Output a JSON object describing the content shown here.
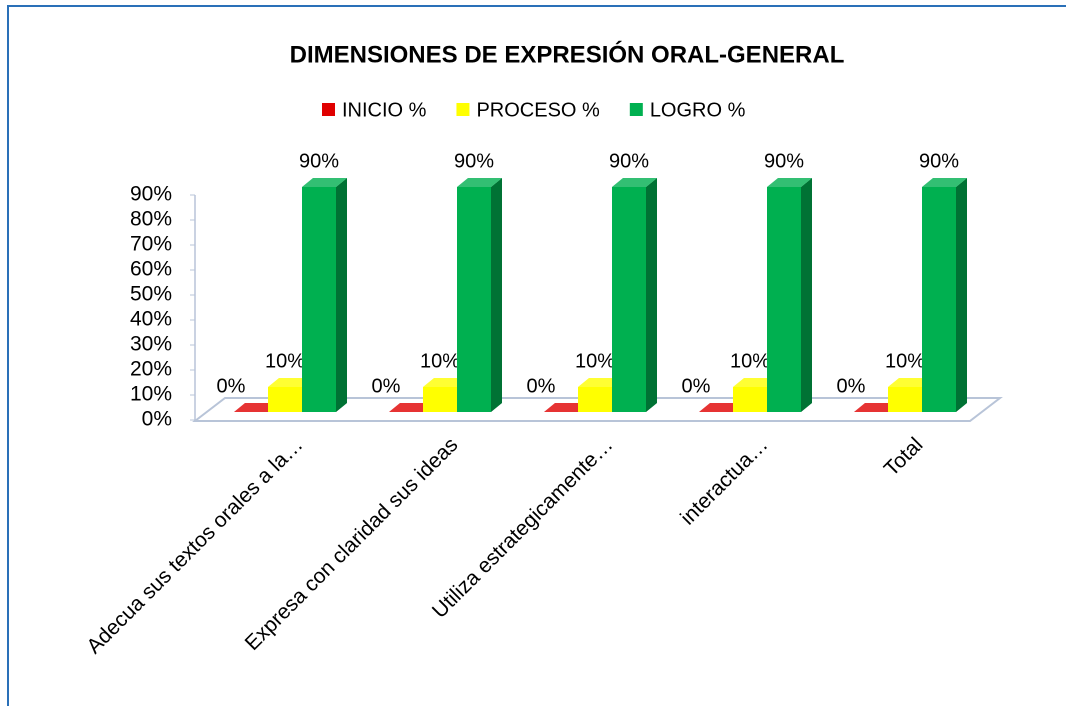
{
  "chart_data": {
    "type": "bar3d",
    "title": "DIMENSIONES DE EXPRESIÓN ORAL-GENERAL",
    "categories": [
      "Adecua sus textos orales a la…",
      "Expresa con claridad sus ideas",
      "Utiliza estrategicamente…",
      "interactua…",
      "Total"
    ],
    "series": [
      {
        "name": "INICIO %",
        "color": "#e00000",
        "values": [
          0,
          0,
          0,
          0,
          0
        ],
        "value_labels": [
          "0%",
          "0%",
          "0%",
          "0%",
          "0%"
        ]
      },
      {
        "name": "PROCESO %",
        "color": "#ffff00",
        "values": [
          10,
          10,
          10,
          10,
          10
        ],
        "value_labels": [
          "10%",
          "10%",
          "10%",
          "10%",
          "10%"
        ]
      },
      {
        "name": "LOGRO %",
        "color": "#00b050",
        "values": [
          90,
          90,
          90,
          90,
          90
        ],
        "value_labels": [
          "90%",
          "90%",
          "90%",
          "90%",
          "90%"
        ]
      }
    ],
    "ylim": [
      0,
      90
    ],
    "yticks": [
      {
        "value": 0,
        "label": "0%"
      },
      {
        "value": 10,
        "label": "10%"
      },
      {
        "value": 20,
        "label": "20%"
      },
      {
        "value": 30,
        "label": "30%"
      },
      {
        "value": 40,
        "label": "40%"
      },
      {
        "value": 50,
        "label": "50%"
      },
      {
        "value": 60,
        "label": "60%"
      },
      {
        "value": 70,
        "label": "70%"
      },
      {
        "value": 80,
        "label": "80%"
      },
      {
        "value": 90,
        "label": "90%"
      }
    ],
    "legend": "top"
  }
}
